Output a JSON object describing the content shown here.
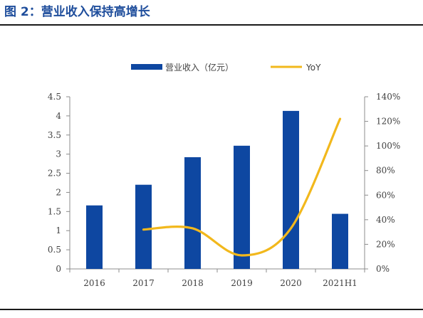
{
  "figure_title": "图 2：营业收入保持高增长",
  "colors": {
    "bar": "#0e47a1",
    "line": "#f2b81c",
    "title": "#1f4e9c",
    "axis": "#8c8c8c"
  },
  "chart_data": {
    "type": "bar",
    "categories": [
      "2016",
      "2017",
      "2018",
      "2019",
      "2020",
      "2021H1"
    ],
    "series": [
      {
        "name": "营业收入（亿元）",
        "type": "bar",
        "axis": "left",
        "values": [
          1.66,
          2.2,
          2.92,
          3.22,
          4.13,
          1.44
        ]
      },
      {
        "name": "YoY",
        "type": "line",
        "axis": "right",
        "smooth": true,
        "values": [
          null,
          32,
          33,
          11,
          33,
          122
        ]
      }
    ],
    "y_left": {
      "min": 0,
      "max": 4.5,
      "ticks": [
        "0",
        "0.5",
        "1",
        "1.5",
        "2",
        "2.5",
        "3",
        "3.5",
        "4",
        "4.5"
      ]
    },
    "y_right": {
      "min": 0,
      "max": 140,
      "ticks": [
        "0%",
        "20%",
        "40%",
        "60%",
        "80%",
        "100%",
        "120%",
        "140%"
      ]
    },
    "legend_position": "top-center",
    "grid": false
  }
}
